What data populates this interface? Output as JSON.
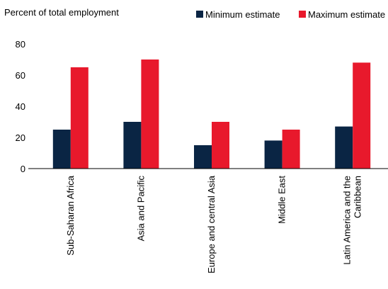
{
  "chart_data": {
    "type": "bar",
    "ylabel": "Percent of total employment",
    "categories": [
      "Sub-Saharan Africa",
      "Asia and Pacific",
      "Europe and central Asia",
      "Middle East",
      "Latin America and the Caribbean"
    ],
    "category_lines": [
      [
        "Sub-Saharan Africa"
      ],
      [
        "Asia and Pacific"
      ],
      [
        "Europe and central Asia"
      ],
      [
        "Middle East"
      ],
      [
        "Latin America and the",
        "Caribbean"
      ]
    ],
    "series": [
      {
        "name": "Minimum estimate",
        "values": [
          25,
          30,
          15,
          18,
          27
        ],
        "color": "#0a2544"
      },
      {
        "name": "Maximum estimate",
        "values": [
          65,
          70,
          30,
          25,
          68
        ],
        "color": "#e8192c"
      }
    ],
    "ylim": [
      0,
      80
    ],
    "yticks": [
      0,
      20,
      40,
      60,
      80
    ],
    "grid": false,
    "legend_position": "top-right"
  }
}
